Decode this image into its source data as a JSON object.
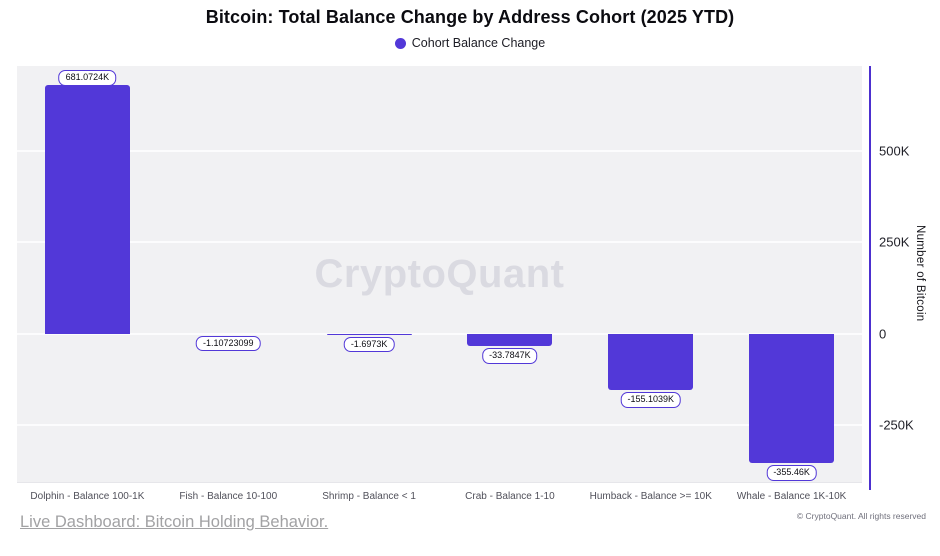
{
  "header": {
    "title": "Bitcoin: Total Balance Change by Address Cohort (2025 YTD)",
    "legend_label": "Cohort Balance Change"
  },
  "chart_data": {
    "type": "bar",
    "title": "Bitcoin: Total Balance Change by Address Cohort (2025 YTD)",
    "series_name": "Cohort Balance Change",
    "categories": [
      "Dolphin - Balance 100-1K",
      "Fish - Balance 10-100",
      "Shrimp - Balance < 1",
      "Crab - Balance 1-10",
      "Humback - Balance >= 10K",
      "Whale - Balance 1K-10K"
    ],
    "values": [
      681072.4,
      -1.10723099,
      -1697.3,
      -33784.7,
      -155103.9,
      -355460
    ],
    "value_labels": [
      "681.0724K",
      "-1.10723099",
      "-1.6973K",
      "-33.7847K",
      "-155.1039K",
      "-355.46K"
    ],
    "ylabel": "Number of Bitcoin",
    "yticks": [
      {
        "value": 500000,
        "label": "500K"
      },
      {
        "value": 250000,
        "label": "250K"
      },
      {
        "value": 0,
        "label": "0"
      },
      {
        "value": -250000,
        "label": "-250K"
      }
    ],
    "ylim": [
      -409000,
      732000
    ],
    "grid": true,
    "legend_position": "top",
    "watermark": "CryptoQuant",
    "colors": {
      "bar": "#5238d8",
      "axis_line": "#4c30cf",
      "plot_background": "#f1f1f3",
      "label_border": "#5238d8"
    }
  },
  "footer": {
    "link_text": "Live Dashboard: Bitcoin Holding Behavior.",
    "copyright": "© CryptoQuant. All rights reserved"
  }
}
